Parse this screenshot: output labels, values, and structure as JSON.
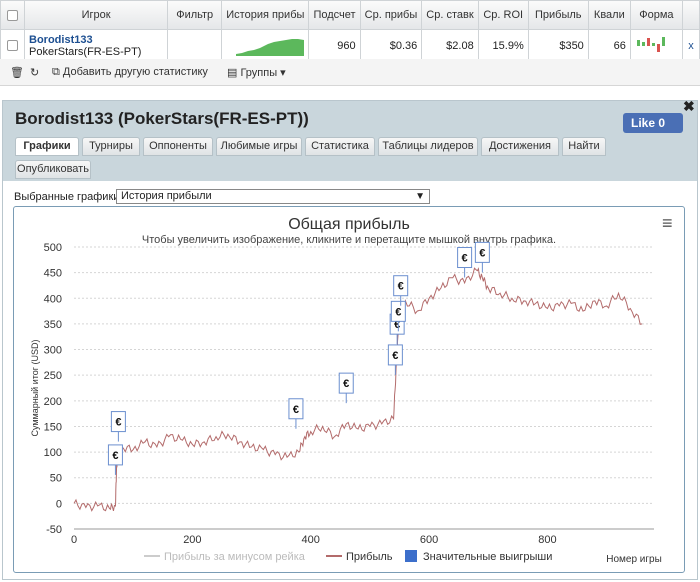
{
  "table": {
    "headers": [
      "Игрок",
      "Фильтр",
      "История прибы",
      "Подсчет",
      "Ср. прибы",
      "Ср. ставк",
      "Ср. ROI",
      "Прибыль",
      "Квали",
      "Форма"
    ],
    "row": {
      "player": "Borodist133",
      "network": "PokerStars(FR-ES-PT)",
      "count": "960",
      "avg_profit": "$0.36",
      "avg_stake": "$2.08",
      "avg_roi": "15.9%",
      "profit": "$350",
      "quality": "66",
      "remove": "x"
    }
  },
  "toolbar": {
    "add_stats": "Добавить другую статистику",
    "groups": "Группы"
  },
  "panel": {
    "title": "Borodist133 (PokerStars(FR-ES-PT))",
    "like": "Like 0",
    "tabs": [
      "Графики",
      "Турниры",
      "Оппоненты",
      "Любимые игры",
      "Статистика",
      "Таблицы лидеров",
      "Достижения",
      "Найти",
      "Опубликовать"
    ],
    "select_label": "Выбранные графики:",
    "select_value": "История прибыли"
  },
  "colors": {
    "line": "#b36b6b",
    "accent": "#3c6fcb",
    "tab_bg": "#c9d6dc"
  },
  "chart_data": {
    "type": "line",
    "title": "Общая прибыль",
    "subtitle": "Чтобы увеличить изображение, кликните и перетащите мышкой внутрь графика.",
    "ylabel": "Суммарный итог (USD)",
    "xlabel": "Номер игры",
    "ylim": [
      -50,
      500
    ],
    "xlim": [
      0,
      980
    ],
    "yticks": [
      -50,
      0,
      50,
      100,
      150,
      200,
      250,
      300,
      350,
      400,
      450,
      500
    ],
    "xticks": [
      0,
      200,
      400,
      600,
      800
    ],
    "legend": [
      "Прибыль за минусом рейка",
      "Прибыль",
      "Значительные выигрыши"
    ],
    "series": [
      {
        "name": "Прибыль",
        "x": [
          0,
          20,
          40,
          60,
          70,
          72,
          75,
          80,
          100,
          120,
          140,
          160,
          180,
          200,
          220,
          240,
          260,
          280,
          300,
          320,
          340,
          360,
          380,
          390,
          400,
          420,
          440,
          460,
          480,
          500,
          520,
          540,
          545,
          550,
          560,
          580,
          600,
          620,
          640,
          660,
          680,
          690,
          700,
          720,
          740,
          760,
          780,
          800,
          820,
          840,
          860,
          880,
          900,
          920,
          940,
          960
        ],
        "y": [
          0,
          -8,
          -5,
          -10,
          -5,
          75,
          95,
          110,
          105,
          120,
          110,
          130,
          125,
          115,
          120,
          130,
          135,
          120,
          110,
          105,
          95,
          90,
          100,
          130,
          140,
          150,
          130,
          155,
          145,
          150,
          155,
          165,
          280,
          370,
          395,
          375,
          400,
          420,
          440,
          430,
          455,
          440,
          420,
          410,
          400,
          395,
          390,
          380,
          385,
          390,
          375,
          395,
          385,
          410,
          380,
          350
        ]
      }
    ],
    "big_wins": [
      {
        "x": 70,
        "y": 75
      },
      {
        "x": 75,
        "y": 140
      },
      {
        "x": 375,
        "y": 165
      },
      {
        "x": 460,
        "y": 215
      },
      {
        "x": 543,
        "y": 270
      },
      {
        "x": 546,
        "y": 330
      },
      {
        "x": 548,
        "y": 355
      },
      {
        "x": 552,
        "y": 405
      },
      {
        "x": 660,
        "y": 460
      },
      {
        "x": 690,
        "y": 470
      }
    ]
  }
}
